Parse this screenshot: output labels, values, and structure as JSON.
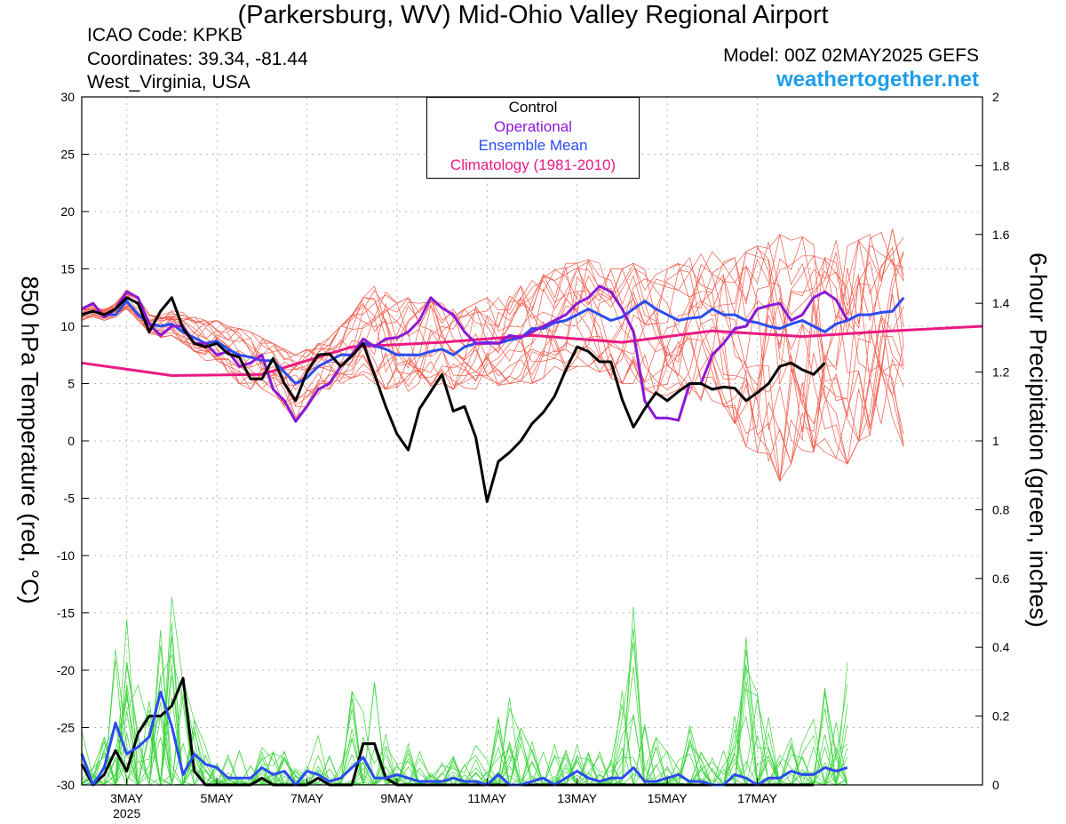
{
  "header": {
    "title": "(Parkersburg, WV) Mid-Ohio Valley Regional Airport",
    "icao": "ICAO Code: KPKB",
    "coordinates": "Coordinates: 39.34, -81.44",
    "region": "West_Virginia, USA",
    "model": "Model: 00Z 02MAY2025 GEFS",
    "site": "weathertogether.net"
  },
  "legend": {
    "control": "Control",
    "operational": "Operational",
    "ensemble_mean": "Ensemble Mean",
    "climatology": "Climatology (1981-2010)"
  },
  "colors": {
    "control": "#000000",
    "operational": "#8a18d8",
    "ensemble_mean": "#2a4cf0",
    "climatology": "#ea1a82",
    "members_temp": "#f05a4a",
    "members_precip": "#3ad43a",
    "grid": "#bbbbbb"
  },
  "chart_data": {
    "type": "line",
    "title": "(Parkersburg, WV) Mid-Ohio Valley Regional Airport",
    "ylabel": "850 hPa Temperature (red, °C)",
    "y2label": "6-hour Precipitation (green, inches)",
    "time_step_hours": 6,
    "ylim": [
      -30,
      30
    ],
    "y2lim": [
      0,
      2
    ],
    "yticks": [
      "30",
      "25",
      "20",
      "15",
      "10",
      "5",
      "0",
      "-5",
      "-10",
      "-15",
      "-20",
      "-25",
      "-30"
    ],
    "y2ticks": [
      "2",
      "1.8",
      "1.6",
      "1.4",
      "1.2",
      "1",
      "0.8",
      "0.6",
      "0.4",
      "0.2",
      "0"
    ],
    "xticks": [
      {
        "step": 4,
        "label": "3MAY",
        "sub": "2025"
      },
      {
        "step": 12,
        "label": "5MAY"
      },
      {
        "step": 20,
        "label": "7MAY"
      },
      {
        "step": 28,
        "label": "9MAY"
      },
      {
        "step": 36,
        "label": "11MAY"
      },
      {
        "step": 44,
        "label": "13MAY"
      },
      {
        "step": 52,
        "label": "15MAY"
      },
      {
        "step": 60,
        "label": "17MAY"
      }
    ],
    "grid": true,
    "legend_position": "top-center",
    "temperature": {
      "control": {
        "name": "Control",
        "values": [
          11,
          11.3,
          11.0,
          11.5,
          12.5,
          12.0,
          9.5,
          11.3,
          12.5,
          9.8,
          8.5,
          8.2,
          8.5,
          7.6,
          7.3,
          5.4,
          5.4,
          7.2,
          5.0,
          3.5,
          6.0,
          7.5,
          7.6,
          6.5,
          7.4,
          8.5,
          5.8,
          3.0,
          0.6,
          -0.8,
          2.8,
          4.3,
          5.8,
          2.6,
          3.0,
          0.3,
          -5.3,
          -1.8,
          -1.0,
          0.0,
          1.5,
          2.5,
          3.9,
          6.2,
          8.2,
          7.8,
          6.9,
          6.9,
          3.6,
          1.2,
          2.8,
          4.2,
          3.5,
          4.3,
          5.0,
          5.0,
          4.5,
          4.7,
          4.6,
          3.5,
          4.2,
          5.0,
          6.5,
          6.8,
          6.2,
          5.8,
          6.8
        ]
      },
      "operational": {
        "name": "Operational",
        "values": [
          11.5,
          12,
          10.8,
          11.5,
          13,
          12.5,
          10.2,
          9.2,
          10,
          10,
          8.5,
          8.5,
          7.5,
          7.8,
          6.5,
          6.8,
          7.5,
          4.5,
          3.5,
          1.7,
          3.0,
          4.5,
          5.0,
          6.5,
          7.5,
          8.9,
          8.2,
          8.9,
          9.0,
          9.5,
          10.5,
          12.5,
          11.6,
          11.0,
          9.5,
          8.5,
          8.5,
          8.5,
          9.2,
          9.0,
          9.5,
          10.0,
          10.5,
          11.0,
          12.0,
          12.5,
          13.5,
          13.0,
          11.5,
          9.5,
          3.5,
          2.0,
          2.0,
          1.8,
          5.0,
          5.0,
          7.5,
          8.5,
          9.8,
          10.0,
          11.5,
          11.8,
          12.0,
          10.5,
          11.0,
          12.5,
          13.0,
          12.3,
          10.5
        ]
      },
      "ensemble_mean": {
        "name": "Ensemble Mean",
        "values": [
          11,
          11.3,
          11.0,
          11.0,
          12.2,
          11.0,
          10.2,
          10.0,
          10.2,
          9.5,
          9.0,
          8.5,
          8.7,
          8.0,
          7.5,
          7.3,
          7.0,
          7.0,
          6.0,
          5.0,
          5.5,
          6.5,
          7.0,
          7.5,
          7.5,
          8.5,
          8.3,
          8.0,
          7.5,
          7.5,
          7.5,
          7.8,
          8.0,
          7.5,
          8.2,
          8.5,
          8.6,
          8.5,
          8.8,
          9.0,
          9.8,
          9.8,
          10.3,
          10.5,
          11.0,
          11.5,
          11.0,
          10.5,
          10.8,
          11.5,
          12.2,
          11.5,
          11.0,
          10.5,
          10.7,
          10.8,
          11.5,
          11.0,
          11.0,
          10.5,
          10.3,
          10.0,
          9.8,
          10.2,
          10.5,
          10.0,
          9.5,
          10.2,
          10.5,
          11.0,
          11.0,
          11.2,
          11.3,
          12.5
        ]
      },
      "climatology": {
        "name": "Climatology (1981-2010)",
        "values": [
          [
            0,
            6.8
          ],
          [
            8,
            5.7
          ],
          [
            16,
            5.8
          ],
          [
            24,
            8.2
          ],
          [
            32,
            8.6
          ],
          [
            40,
            9.2
          ],
          [
            48,
            8.6
          ],
          [
            56,
            9.6
          ],
          [
            64,
            9.1
          ],
          [
            72,
            9.6
          ],
          [
            80,
            10.0
          ]
        ]
      },
      "members_min": [
        10.5,
        10.8,
        10.5,
        10.8,
        11.5,
        10.5,
        9.3,
        9.0,
        9.2,
        8.5,
        7.8,
        7.0,
        7.0,
        6.0,
        5.0,
        4.5,
        4.5,
        4.0,
        3.0,
        1.8,
        3.0,
        4.0,
        4.5,
        5.0,
        5.5,
        5.8,
        5.0,
        4.5,
        4.0,
        4.0,
        4.5,
        4.8,
        5.0,
        4.5,
        4.5,
        4.5,
        5.0,
        4.8,
        5.0,
        5.2,
        5.0,
        5.5,
        6.0,
        6.0,
        6.5,
        6.5,
        6.0,
        5.5,
        5.0,
        5.0,
        4.5,
        4.0,
        4.0,
        4.0,
        4.0,
        3.5,
        3.5,
        3.0,
        1.5,
        -0.5,
        -1.0,
        -2.5,
        -3.5,
        -2.0,
        -1.5,
        -1.0,
        -1.0,
        -1.5,
        -2.0,
        0,
        0.5,
        1.5,
        2.0,
        -0.5
      ],
      "members_max": [
        11.5,
        11.8,
        11.5,
        12.0,
        13.2,
        12.5,
        11.0,
        11.0,
        11.5,
        11.2,
        10.8,
        10.5,
        10.5,
        10.0,
        9.8,
        9.5,
        9.0,
        8.5,
        8.0,
        7.5,
        8.0,
        8.5,
        9.0,
        10.0,
        11.0,
        12.5,
        13.5,
        13.0,
        12.0,
        12.5,
        12.0,
        12.5,
        12.0,
        11.5,
        11.5,
        12.0,
        12.5,
        12.5,
        13.0,
        13.5,
        14.0,
        14.5,
        15.0,
        15.5,
        15.5,
        15.8,
        15.5,
        15.0,
        15.0,
        15.5,
        15.0,
        14.5,
        15.0,
        15.5,
        16.0,
        16.5,
        16.5,
        16.0,
        16.0,
        16.5,
        17.0,
        17.5,
        18.0,
        17.5,
        17.8,
        18.0,
        17.5,
        17.5,
        17.0,
        17.5,
        18.0,
        18.2,
        18.5,
        18.5
      ]
    },
    "precipitation": {
      "control": {
        "name": "Control",
        "values": [
          0.06,
          0.0,
          0.03,
          0.1,
          0.04,
          0.15,
          0.2,
          0.2,
          0.23,
          0.31,
          0.04,
          0.0,
          0.0,
          0.0,
          0.0,
          0.0,
          0.02,
          0.0,
          0.0,
          0.0,
          0.0,
          0.02,
          0.0,
          0.0,
          0.0,
          0.12,
          0.12,
          0.02,
          0.0,
          0.0,
          0.0,
          0.0,
          0.0,
          0.0,
          0.0,
          0.0,
          0.0,
          0.0,
          0.0,
          0.0,
          0.0,
          0.0,
          0.0,
          0.0,
          0.0,
          0.0,
          0.0,
          0.0,
          0.0,
          0.0,
          0.0,
          0.0,
          0.0,
          0.0,
          0.0,
          0.0,
          0.0,
          0.0,
          0.0,
          0.0,
          0.0,
          0.0,
          0.0,
          0.0,
          0.0,
          0.0
        ]
      },
      "ensemble_mean": {
        "name": "Ensemble Mean",
        "values": [
          0.09,
          0.0,
          0.05,
          0.18,
          0.09,
          0.11,
          0.14,
          0.27,
          0.17,
          0.03,
          0.09,
          0.06,
          0.05,
          0.02,
          0.02,
          0.02,
          0.05,
          0.03,
          0.04,
          0.0,
          0.04,
          0.03,
          0.01,
          0.02,
          0.05,
          0.08,
          0.02,
          0.02,
          0.03,
          0.02,
          0.01,
          0.01,
          0.01,
          0.02,
          0.01,
          0.01,
          0.0,
          0.03,
          0.0,
          0.0,
          0.01,
          0.02,
          0.0,
          0.02,
          0.04,
          0.02,
          0.01,
          0.02,
          0.02,
          0.05,
          0.01,
          0.01,
          0.02,
          0.03,
          0.01,
          0.01,
          0.0,
          0.0,
          0.03,
          0.02,
          0.0,
          0.02,
          0.02,
          0.04,
          0.03,
          0.03,
          0.05,
          0.04,
          0.05
        ]
      },
      "members_peak": [
        0.28,
        0.05,
        0.15,
        0.42,
        0.5,
        0.3,
        0.35,
        0.52,
        0.55,
        0.46,
        0.2,
        0.12,
        0.15,
        0.1,
        0.1,
        0.08,
        0.12,
        0.1,
        0.1,
        0.05,
        0.08,
        0.15,
        0.1,
        0.12,
        0.3,
        0.4,
        0.35,
        0.15,
        0.08,
        0.12,
        0.1,
        0.05,
        0.08,
        0.1,
        0.1,
        0.12,
        0.1,
        0.2,
        0.28,
        0.25,
        0.15,
        0.1,
        0.12,
        0.1,
        0.18,
        0.12,
        0.1,
        0.08,
        0.3,
        0.6,
        0.25,
        0.15,
        0.12,
        0.1,
        0.18,
        0.1,
        0.08,
        0.12,
        0.2,
        0.46,
        0.3,
        0.2,
        0.1,
        0.15,
        0.15,
        0.2,
        0.3,
        0.2,
        0.4
      ]
    }
  }
}
